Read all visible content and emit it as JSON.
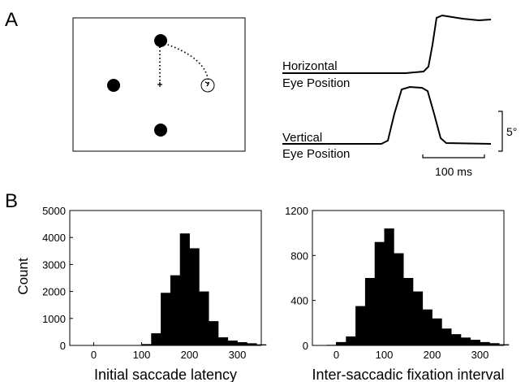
{
  "panels": {
    "a_label": "A",
    "b_label": "B"
  },
  "traces": {
    "horizontal_label": "Horizontal",
    "vertical_label": "Vertical",
    "eye_position_label": "Eye Position",
    "time_scale_label": "100 ms",
    "amplitude_scale_label": "5°"
  },
  "chart_data": [
    {
      "type": "bar",
      "title": "",
      "xlabel": "Initial saccade latency",
      "ylabel": "Count",
      "bin_width": 20,
      "x": [
        100,
        120,
        140,
        160,
        180,
        200,
        220,
        240,
        260,
        280,
        300,
        320,
        340
      ],
      "values": [
        50,
        450,
        1950,
        2600,
        4150,
        3600,
        2000,
        900,
        300,
        180,
        120,
        80,
        40
      ],
      "xlim": [
        -50,
        350
      ],
      "ylim": [
        0,
        5000
      ],
      "xticks": [
        0,
        100,
        200,
        300
      ],
      "yticks": [
        0,
        1000,
        2000,
        3000,
        4000,
        5000
      ],
      "color": "#000000"
    },
    {
      "type": "bar",
      "title": "",
      "xlabel": "Inter-saccadic fixation interval",
      "ylabel": "",
      "bin_width": 20,
      "x": [
        -20,
        0,
        20,
        40,
        60,
        80,
        100,
        120,
        140,
        160,
        180,
        200,
        220,
        240,
        260,
        280,
        300,
        320,
        340
      ],
      "values": [
        5,
        30,
        80,
        350,
        600,
        920,
        1040,
        820,
        600,
        480,
        320,
        240,
        150,
        100,
        70,
        50,
        30,
        20,
        10
      ],
      "xlim": [
        -50,
        350
      ],
      "ylim": [
        0,
        1200
      ],
      "xticks": [
        0,
        100,
        200,
        300
      ],
      "yticks": [
        0,
        400,
        800,
        1200
      ],
      "color": "#000000"
    }
  ]
}
